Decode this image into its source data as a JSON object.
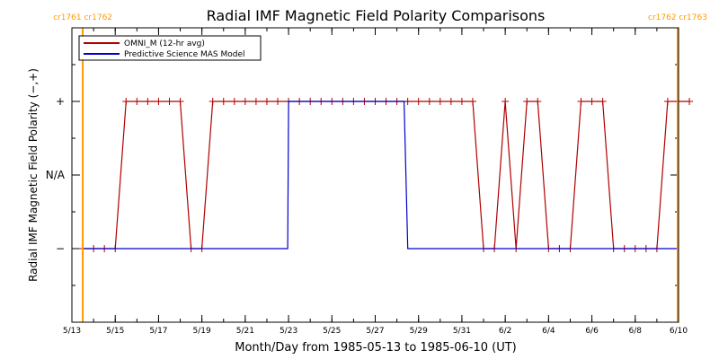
{
  "chart_data": {
    "type": "line",
    "title": "Radial IMF Magnetic Field Polarity Comparisons",
    "xlabel": "Month/Day from 1985-05-13 to 1985-06-10 (UT)",
    "ylabel": "Radial IMF Magnetic Field Polarity (−,+)",
    "xlim": [
      "1985-05-13",
      "1985-06-10"
    ],
    "ylim": [
      -2,
      2
    ],
    "y_tick_labels": [
      {
        "value": 1,
        "label": "+"
      },
      {
        "value": 0,
        "label": "N/A"
      },
      {
        "value": -1,
        "label": "−"
      }
    ],
    "x_tick_labels": [
      {
        "date": "1985-05-13",
        "label": "5/13"
      },
      {
        "date": "1985-05-15",
        "label": "5/15"
      },
      {
        "date": "1985-05-17",
        "label": "5/17"
      },
      {
        "date": "1985-05-19",
        "label": "5/19"
      },
      {
        "date": "1985-05-21",
        "label": "5/21"
      },
      {
        "date": "1985-05-23",
        "label": "5/23"
      },
      {
        "date": "1985-05-25",
        "label": "5/25"
      },
      {
        "date": "1985-05-27",
        "label": "5/27"
      },
      {
        "date": "1985-05-29",
        "label": "5/29"
      },
      {
        "date": "1985-05-31",
        "label": "5/31"
      },
      {
        "date": "1985-06-02",
        "label": "6/2"
      },
      {
        "date": "1985-06-04",
        "label": "6/4"
      },
      {
        "date": "1985-06-06",
        "label": "6/6"
      },
      {
        "date": "1985-06-08",
        "label": "6/8"
      },
      {
        "date": "1985-06-10",
        "label": "6/10"
      }
    ],
    "legend_position": "top-left",
    "series": [
      {
        "name": "OMNI_M (12-hr avg)",
        "color": "#b00000",
        "marker": "+",
        "x": [
          "1985-05-13 12:00",
          "1985-05-14 00:00",
          "1985-05-14 12:00",
          "1985-05-15 00:00",
          "1985-05-15 12:00",
          "1985-05-16 00:00",
          "1985-05-16 12:00",
          "1985-05-17 00:00",
          "1985-05-17 12:00",
          "1985-05-18 00:00",
          "1985-05-18 12:00",
          "1985-05-19 00:00",
          "1985-05-19 12:00",
          "1985-05-20 00:00",
          "1985-05-20 12:00",
          "1985-05-21 00:00",
          "1985-05-21 12:00",
          "1985-05-22 00:00",
          "1985-05-22 12:00",
          "1985-05-23 00:00",
          "1985-05-23 12:00",
          "1985-05-24 00:00",
          "1985-05-24 12:00",
          "1985-05-25 00:00",
          "1985-05-25 12:00",
          "1985-05-26 00:00",
          "1985-05-26 12:00",
          "1985-05-27 00:00",
          "1985-05-27 12:00",
          "1985-05-28 00:00",
          "1985-05-28 12:00",
          "1985-05-29 00:00",
          "1985-05-29 12:00",
          "1985-05-30 00:00",
          "1985-05-30 12:00",
          "1985-05-31 00:00",
          "1985-05-31 12:00",
          "1985-06-01 00:00",
          "1985-06-01 12:00",
          "1985-06-02 00:00",
          "1985-06-02 12:00",
          "1985-06-03 00:00",
          "1985-06-03 12:00",
          "1985-06-04 00:00",
          "1985-06-04 12:00",
          "1985-06-05 00:00",
          "1985-06-05 12:00",
          "1985-06-06 00:00",
          "1985-06-06 12:00",
          "1985-06-07 00:00",
          "1985-06-07 12:00",
          "1985-06-08 00:00",
          "1985-06-08 12:00",
          "1985-06-09 00:00",
          "1985-06-09 12:00",
          "1985-06-10 00:00",
          "1985-06-10 12:00"
        ],
        "y": [
          -1,
          -1,
          -1,
          -1,
          1,
          1,
          1,
          1,
          1,
          1,
          -1,
          -1,
          1,
          1,
          1,
          1,
          1,
          1,
          1,
          1,
          1,
          1,
          1,
          1,
          1,
          1,
          1,
          1,
          1,
          1,
          1,
          1,
          1,
          1,
          1,
          1,
          1,
          -1,
          -1,
          1,
          -1,
          1,
          1,
          -1,
          -1,
          -1,
          1,
          1,
          1,
          -1,
          -1,
          -1,
          -1,
          -1,
          1,
          1,
          1
        ]
      },
      {
        "name": "Predictive Science MAS Model",
        "color": "#0000cc",
        "marker": "none",
        "x": [
          "1985-05-13 12:00",
          "1985-05-22 23:00",
          "1985-05-23 00:00",
          "1985-05-28 08:00",
          "1985-05-28 12:00",
          "1985-06-09 23:00"
        ],
        "y": [
          -1,
          -1,
          1,
          1,
          -1,
          -1
        ]
      }
    ],
    "vertical_lines": [
      {
        "date": "1985-05-13 12:00",
        "color": "#ff9900",
        "label": "cr1761 cr1762"
      },
      {
        "date": "1985-06-09 23:00",
        "color": "#ff9900",
        "label": "cr1762 cr1763"
      }
    ]
  }
}
